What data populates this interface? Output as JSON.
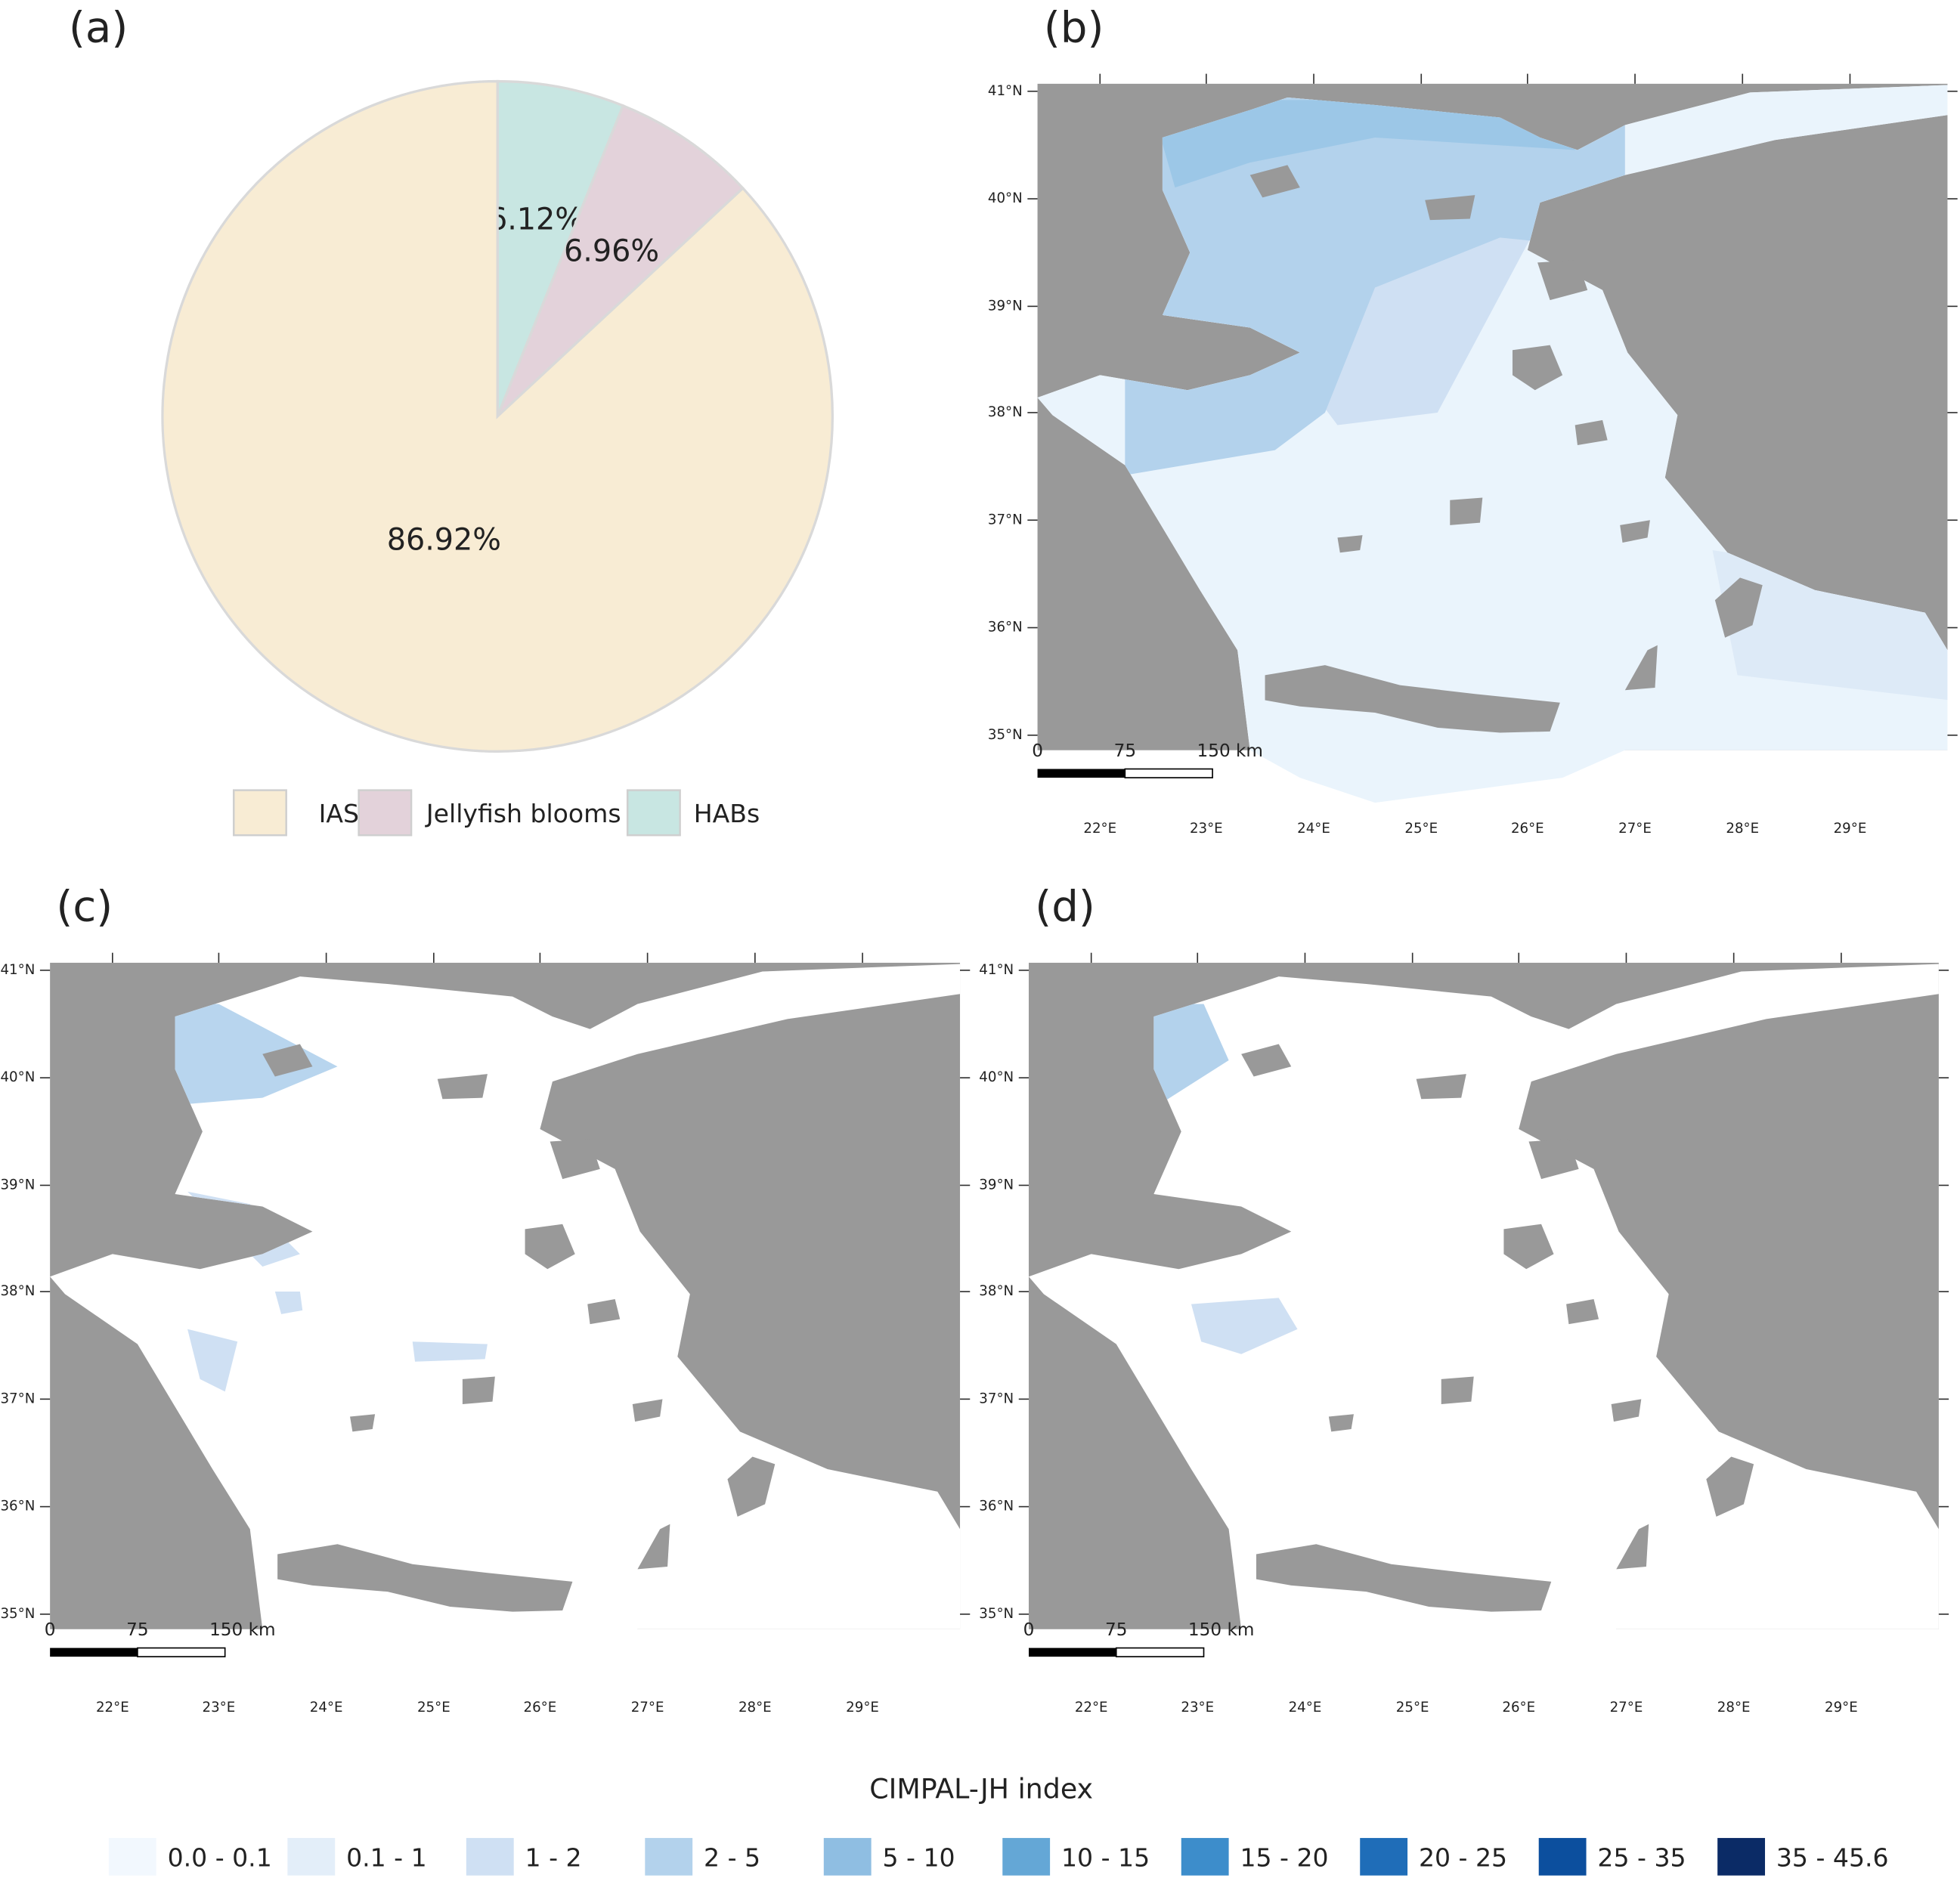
{
  "chart_data": {
    "type": "pie",
    "panel": "(a)",
    "categories": [
      "IAS",
      "Jellyfish blooms",
      "HABs"
    ],
    "values": [
      86.92,
      6.96,
      6.12
    ],
    "value_labels": [
      "86.92%",
      "6.96%",
      "6.12%"
    ],
    "colors": [
      "#f8ecd4",
      "#e3d2da",
      "#c8e6e2"
    ],
    "legend": "bottom"
  },
  "maps": [
    {
      "label": "(b)"
    },
    {
      "label": "(c)"
    },
    {
      "label": "(d)"
    }
  ],
  "map_axes": {
    "lat_labels": [
      "41°N",
      "40°N",
      "39°N",
      "38°N",
      "37°N",
      "36°N",
      "35°N"
    ],
    "lon_labels": [
      "22°E",
      "23°E",
      "24°E",
      "25°E",
      "26°E",
      "27°E",
      "28°E",
      "29°E"
    ],
    "scale_labels": [
      "0",
      "75",
      "150 km"
    ]
  },
  "index_legend": {
    "title": "CIMPAL-JH index",
    "classes": [
      "0.0 - 0.1",
      "0.1 - 1",
      "1 - 2",
      "2 - 5",
      "5 - 10",
      "10 - 15",
      "15 - 20",
      "20 - 25",
      "25 - 35",
      "35 - 45.6"
    ],
    "colors": [
      "#f2f8fe",
      "#e3eef9",
      "#cfe0f3",
      "#b3d2ec",
      "#8fbee2",
      "#64a7d6",
      "#3d8dcb",
      "#1f6db8",
      "#0c4f9e",
      "#0b2b66"
    ]
  }
}
